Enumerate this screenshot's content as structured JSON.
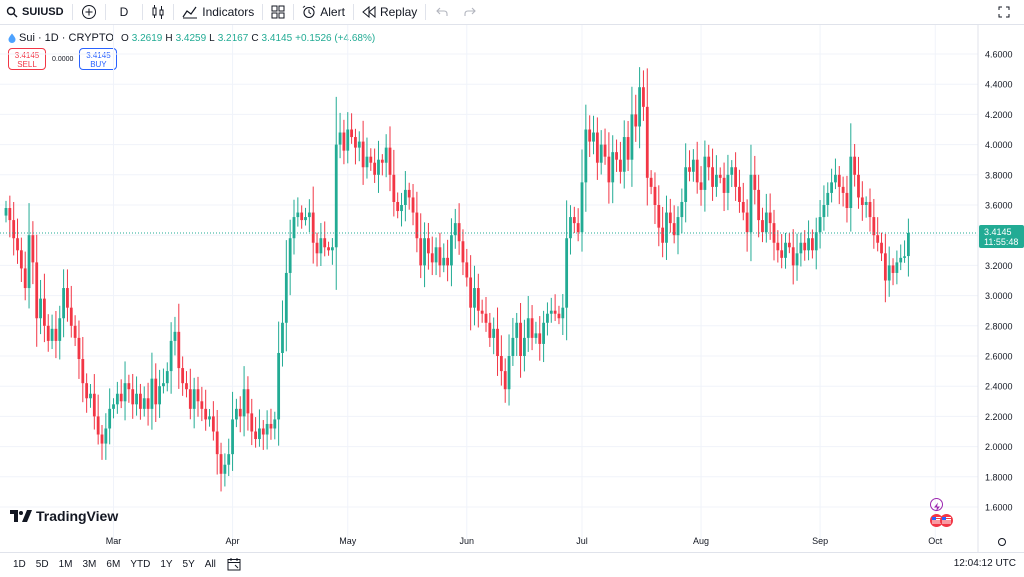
{
  "toolbar": {
    "symbol": "SUIUSD",
    "interval": "D",
    "indicators_label": "Indicators",
    "alert_label": "Alert",
    "replay_label": "Replay"
  },
  "legend": {
    "title": "Sui · 1D · CRYPTO",
    "open_label": "O",
    "open": "3.2619",
    "high_label": "H",
    "high": "3.4259",
    "low_label": "L",
    "low": "3.2167",
    "close_label": "C",
    "close": "3.4145",
    "change": "+0.1526 (+4.68%)"
  },
  "trade": {
    "sell_price": "3.4145",
    "sell_label": "SELL",
    "spread": "0.0000",
    "buy_price": "3.4145",
    "buy_label": "BUY"
  },
  "bottom": {
    "ranges": [
      "1D",
      "5D",
      "1M",
      "3M",
      "6M",
      "YTD",
      "1Y",
      "5Y",
      "All"
    ],
    "clock": "12:04:12 UTC"
  },
  "brand": "TradingView",
  "colors": {
    "up": "#22ab94",
    "down": "#f23645",
    "grid": "#f0f3fa",
    "text": "#131722"
  },
  "chart_data": {
    "type": "candlestick",
    "symbol": "SUIUSD",
    "y_ticks": [
      "4.6000",
      "4.4000",
      "4.2000",
      "4.0000",
      "3.8000",
      "3.6000",
      "3.4000",
      "3.2000",
      "3.0000",
      "2.8000",
      "2.6000",
      "2.4000",
      "2.2000",
      "2.0000",
      "1.8000",
      "1.6000"
    ],
    "ylim": [
      1.6,
      4.6
    ],
    "x_ticks": [
      "Mar",
      "Apr",
      "May",
      "Jun",
      "Jul",
      "Aug",
      "Sep",
      "Oct"
    ],
    "x_tick_index": [
      28,
      59,
      89,
      120,
      150,
      181,
      212,
      242
    ],
    "last_price": "3.4145",
    "countdown": "11:55:48",
    "grid": true,
    "close": [
      3.58,
      3.5,
      3.38,
      3.3,
      3.18,
      3.05,
      3.4,
      3.22,
      2.85,
      2.98,
      2.8,
      2.7,
      2.78,
      2.7,
      2.85,
      3.05,
      2.92,
      2.8,
      2.72,
      2.58,
      2.42,
      2.32,
      2.35,
      2.2,
      2.08,
      2.02,
      2.12,
      2.25,
      2.28,
      2.35,
      2.3,
      2.42,
      2.38,
      2.28,
      2.35,
      2.25,
      2.32,
      2.25,
      2.45,
      2.28,
      2.4,
      2.42,
      2.5,
      2.7,
      2.76,
      2.52,
      2.42,
      2.38,
      2.25,
      2.38,
      2.3,
      2.25,
      2.18,
      2.2,
      2.1,
      1.95,
      1.82,
      1.88,
      1.95,
      2.18,
      2.25,
      2.2,
      2.38,
      2.22,
      2.1,
      2.05,
      2.12,
      2.08,
      2.15,
      2.12,
      2.18,
      2.62,
      2.82,
      3.15,
      3.38,
      3.52,
      3.55,
      3.5,
      3.52,
      3.55,
      3.35,
      3.28,
      3.38,
      3.32,
      3.3,
      3.32,
      4.0,
      4.08,
      3.96,
      4.1,
      4.05,
      3.98,
      4.02,
      3.85,
      3.92,
      3.88,
      3.8,
      3.9,
      3.88,
      3.98,
      3.8,
      3.62,
      3.56,
      3.6,
      3.7,
      3.65,
      3.55,
      3.38,
      3.2,
      3.38,
      3.28,
      3.22,
      3.32,
      3.2,
      3.25,
      3.2,
      3.4,
      3.48,
      3.36,
      3.22,
      3.12,
      2.92,
      3.05,
      2.9,
      2.88,
      2.82,
      2.72,
      2.78,
      2.6,
      2.5,
      2.38,
      2.6,
      2.72,
      2.82,
      2.6,
      2.72,
      2.85,
      2.72,
      2.75,
      2.68,
      2.82,
      2.88,
      2.9,
      2.88,
      2.85,
      2.92,
      3.38,
      3.52,
      3.48,
      3.42,
      3.75,
      4.1,
      4.02,
      4.08,
      3.88,
      4.0,
      3.92,
      3.75,
      3.95,
      3.9,
      3.82,
      4.05,
      3.9,
      4.2,
      4.12,
      4.38,
      4.25,
      3.78,
      3.72,
      3.6,
      3.45,
      3.35,
      3.55,
      3.48,
      3.4,
      3.52,
      3.62,
      3.85,
      3.82,
      3.9,
      3.75,
      3.7,
      3.92,
      3.85,
      3.72,
      3.8,
      3.78,
      3.68,
      3.8,
      3.85,
      3.72,
      3.62,
      3.55,
      3.42,
      3.8,
      3.7,
      3.5,
      3.42,
      3.55,
      3.48,
      3.35,
      3.3,
      3.25,
      3.35,
      3.32,
      3.2,
      3.28,
      3.35,
      3.3,
      3.38,
      3.3,
      3.42,
      3.52,
      3.6,
      3.68,
      3.75,
      3.8,
      3.72,
      3.68,
      3.58,
      3.92,
      3.8,
      3.65,
      3.6,
      3.62,
      3.52,
      3.4,
      3.35,
      3.28,
      3.1,
      3.2,
      3.15,
      3.22,
      3.25,
      3.26,
      3.4145
    ]
  }
}
